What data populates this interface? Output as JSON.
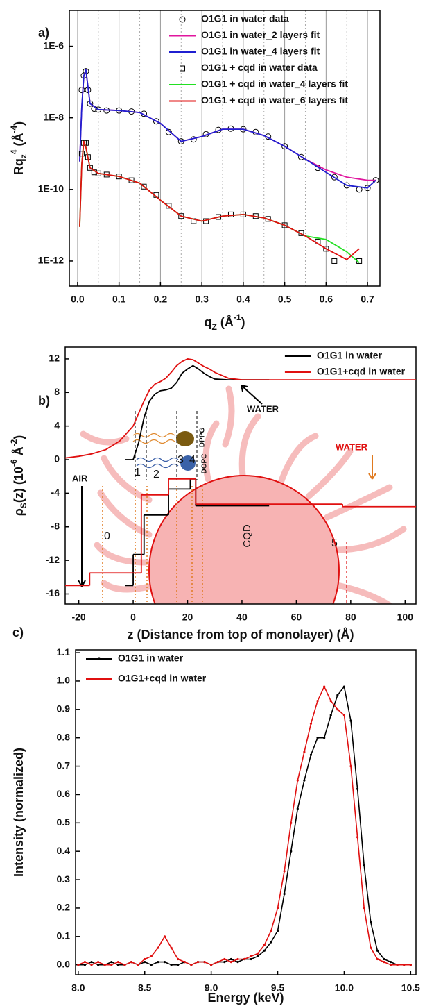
{
  "chart_data": [
    {
      "type": "line",
      "panel_label": "a)",
      "log": true,
      "grid": "x",
      "legend": "upper right",
      "xlim": [
        -0.02,
        0.73
      ],
      "ylim": [
        2e-13,
        1e-05
      ],
      "xticks": [
        {
          "value": 0,
          "label": "0.0"
        },
        0.1,
        0.2,
        0.3,
        0.4,
        0.5,
        0.6,
        0.7
      ],
      "yticks": [
        {
          "value": 1e-12,
          "label": "1E-12"
        },
        {
          "value": 1e-10,
          "label": "1E-10"
        },
        {
          "value": 1e-08,
          "label": "1E-8"
        },
        {
          "value": 1e-06,
          "label": "1E-6"
        }
      ],
      "xlabel": [
        {
          "text": "q"
        },
        {
          "text": "Z",
          "shift": "sub"
        },
        {
          "text": " (Å"
        },
        {
          "text": "-1",
          "shift": "super"
        },
        {
          "text": ")"
        }
      ],
      "ylabel": [
        {
          "text": "Rq"
        },
        {
          "text": "z",
          "shift": "sub"
        },
        {
          "text": "4",
          "shift": "super"
        },
        {
          "text": " (Å"
        },
        {
          "text": "-4",
          "shift": "super"
        },
        {
          "text": ")"
        }
      ],
      "series": [
        {
          "name": "O1G1 in water data",
          "color": "#000000",
          "marker": "circle",
          "line": false,
          "x": [
            0.01,
            0.015,
            0.02,
            0.025,
            0.03,
            0.04,
            0.05,
            0.07,
            0.1,
            0.13,
            0.16,
            0.19,
            0.22,
            0.25,
            0.28,
            0.31,
            0.34,
            0.37,
            0.4,
            0.43,
            0.46,
            0.5,
            0.54,
            0.58,
            0.62,
            0.65,
            0.68,
            0.7,
            0.72
          ],
          "values": [
            6e-08,
            1.5e-07,
            2e-07,
            6e-08,
            2.5e-08,
            1.8e-08,
            1.7e-08,
            1.6e-08,
            1.6e-08,
            1.5e-08,
            1.3e-08,
            8e-09,
            4e-09,
            2.2e-09,
            2.5e-09,
            3.5e-09,
            4.6e-09,
            5e-09,
            4.8e-09,
            4e-09,
            3e-09,
            1.6e-09,
            8e-10,
            4e-10,
            2.2e-10,
            1.3e-10,
            1e-10,
            1.1e-10,
            1.8e-10
          ]
        },
        {
          "name": "O1G1 in water_2 layers fit",
          "color": "#e0169e",
          "marker": "none",
          "line": true,
          "x": [
            0.005,
            0.01,
            0.015,
            0.02,
            0.03,
            0.05,
            0.1,
            0.15,
            0.2,
            0.25,
            0.3,
            0.35,
            0.4,
            0.45,
            0.5,
            0.55,
            0.6,
            0.65,
            0.7,
            0.72
          ],
          "values": [
            6e-10,
            2e-08,
            1.5e-07,
            2.2e-07,
            2.5e-08,
            1.7e-08,
            1.6e-08,
            1.4e-08,
            7e-09,
            2.2e-09,
            3e-09,
            4.8e-09,
            4.8e-09,
            3.2e-09,
            1.6e-09,
            7e-10,
            3.5e-10,
            2.2e-10,
            1.8e-10,
            1.8e-10
          ]
        },
        {
          "name": "O1G1 in water_4 layers fit",
          "color": "#1f1fd0",
          "marker": "none",
          "line": true,
          "x": [
            0.005,
            0.01,
            0.015,
            0.02,
            0.03,
            0.05,
            0.1,
            0.15,
            0.2,
            0.25,
            0.3,
            0.35,
            0.4,
            0.45,
            0.5,
            0.55,
            0.6,
            0.65,
            0.7,
            0.72
          ],
          "values": [
            6e-10,
            2e-08,
            1.5e-07,
            2.2e-07,
            2.5e-08,
            1.7e-08,
            1.6e-08,
            1.4e-08,
            7e-09,
            2.2e-09,
            3e-09,
            4.8e-09,
            4.8e-09,
            3.2e-09,
            1.6e-09,
            7e-10,
            3e-10,
            1.3e-10,
            1.1e-10,
            1.8e-10
          ]
        },
        {
          "name": "O1G1 + cqd in water data",
          "color": "#000000",
          "marker": "square",
          "line": false,
          "x": [
            0.01,
            0.015,
            0.02,
            0.025,
            0.03,
            0.04,
            0.05,
            0.07,
            0.1,
            0.13,
            0.16,
            0.19,
            0.22,
            0.25,
            0.28,
            0.31,
            0.34,
            0.37,
            0.4,
            0.43,
            0.46,
            0.5,
            0.54,
            0.58,
            0.6,
            0.62,
            0.68
          ],
          "values": [
            1e-09,
            2e-09,
            2e-09,
            8e-10,
            4e-10,
            3e-10,
            2.8e-10,
            2.6e-10,
            2.3e-10,
            1.8e-10,
            1.2e-10,
            7e-11,
            3.5e-11,
            1.8e-11,
            1.3e-11,
            1.3e-11,
            1.7e-11,
            2e-11,
            2e-11,
            1.8e-11,
            1.5e-11,
            1e-11,
            6e-12,
            3.5e-12,
            2.2e-12,
            1e-12,
            1e-12
          ]
        },
        {
          "name": "O1G1 + cqd in water_4 layers fit",
          "color": "#22e022",
          "marker": "none",
          "line": true,
          "x": [
            0.005,
            0.01,
            0.015,
            0.02,
            0.03,
            0.05,
            0.1,
            0.15,
            0.2,
            0.25,
            0.3,
            0.35,
            0.4,
            0.45,
            0.5,
            0.55,
            0.6,
            0.65,
            0.68
          ],
          "values": [
            9e-12,
            5e-10,
            2.2e-09,
            1.5e-09,
            4e-10,
            2.8e-10,
            2.3e-10,
            1.5e-10,
            5e-11,
            1.8e-11,
            1.3e-11,
            1.8e-11,
            2e-11,
            1.6e-11,
            1e-11,
            5e-12,
            4e-12,
            1.8e-12,
            9e-13
          ]
        },
        {
          "name": "O1G1 + cqd in water_6 layers fit",
          "color": "#e01010",
          "marker": "none",
          "line": true,
          "x": [
            0.005,
            0.01,
            0.015,
            0.02,
            0.03,
            0.05,
            0.1,
            0.15,
            0.2,
            0.25,
            0.3,
            0.35,
            0.4,
            0.45,
            0.5,
            0.55,
            0.6,
            0.65,
            0.68
          ],
          "values": [
            9e-12,
            5e-10,
            2.2e-09,
            1.5e-09,
            4e-10,
            2.8e-10,
            2.3e-10,
            1.5e-10,
            5e-11,
            1.8e-11,
            1.3e-11,
            1.8e-11,
            2e-11,
            1.6e-11,
            1e-11,
            5e-12,
            2.2e-12,
            1.1e-12,
            2.2e-12
          ]
        }
      ]
    },
    {
      "type": "line",
      "panel_label": "b)",
      "log": false,
      "grid": "none",
      "legend": "upper right",
      "xlim": [
        -25,
        104
      ],
      "ylim": [
        -17.2,
        13.4
      ],
      "xticks": [
        -20,
        0,
        20,
        40,
        60,
        80,
        100
      ],
      "yticks": [
        -16,
        -12,
        -8,
        -4,
        0,
        4,
        8,
        12
      ],
      "xlabel": [
        {
          "text": "z (Distance from top of monolayer) (Å)"
        }
      ],
      "ylabel": [
        {
          "text": "ρ"
        },
        {
          "text": "S",
          "shift": "sub"
        },
        {
          "text": "(z) (10"
        },
        {
          "text": "-6",
          "shift": "super"
        },
        {
          "text": " Å"
        },
        {
          "text": "-2",
          "shift": "super"
        },
        {
          "text": ")"
        }
      ],
      "annotations": [
        "WATER",
        "WATER",
        "AIR",
        "CQD",
        "DPPG",
        "DOPC",
        "0",
        "1",
        "2",
        "3",
        "4",
        "5"
      ],
      "series": [
        {
          "name": "O1G1 in water",
          "color": "#000000",
          "marker": "none",
          "line": true,
          "x": [
            -3,
            0,
            2,
            4,
            6,
            8,
            10,
            12,
            14,
            16,
            18,
            20,
            22,
            24,
            26,
            28,
            30,
            35,
            40,
            50
          ],
          "values": [
            0,
            0,
            2,
            5,
            7,
            7.8,
            8.2,
            8.3,
            8.5,
            9.2,
            10.3,
            10.8,
            11.2,
            10.8,
            10.3,
            9.9,
            9.6,
            9.5,
            9.5,
            9.5
          ]
        },
        {
          "name": "O1G1+cqd in water",
          "color": "#e01010",
          "marker": "none",
          "line": true,
          "x": [
            -25,
            -20,
            -15,
            -10,
            -5,
            0,
            2,
            4,
            6,
            8,
            10,
            12,
            14,
            16,
            18,
            20,
            22,
            24,
            26,
            28,
            30,
            35,
            40,
            60,
            80,
            104
          ],
          "values": [
            0.2,
            0.4,
            0.7,
            1.2,
            2.2,
            4,
            5.5,
            7,
            8.3,
            9,
            9.3,
            9.7,
            10.4,
            11.2,
            11.7,
            12,
            11.9,
            11.5,
            11.1,
            10.8,
            10.4,
            9.7,
            9.5,
            9.5,
            9.5,
            9.5
          ]
        }
      ],
      "step_profiles": [
        {
          "color": "#000000",
          "edges": [
            -3,
            0,
            4,
            13,
            21,
            23,
            50
          ],
          "values": [
            -15,
            -11.3,
            -6.6,
            -3.5,
            -2.3,
            -5.5
          ]
        },
        {
          "color": "#e01010",
          "edges": [
            -25,
            -16,
            3,
            13,
            23,
            77,
            104
          ],
          "values": [
            -15,
            -13.5,
            -4.2,
            -2.3,
            -5.3,
            -5.6
          ]
        }
      ]
    },
    {
      "type": "line",
      "panel_label": "c)",
      "log": false,
      "grid": "none",
      "legend": "upper left",
      "xlim": [
        7.98,
        10.54
      ],
      "ylim": [
        -0.035,
        1.11
      ],
      "xticks": [
        {
          "value": 8,
          "label": "8.0"
        },
        8.5,
        {
          "value": 9,
          "label": "9.0"
        },
        9.5,
        {
          "value": 10,
          "label": "10.0"
        },
        10.5
      ],
      "yticks": [
        {
          "value": 0,
          "label": "0.0"
        },
        0.1,
        0.2,
        0.3,
        0.4,
        0.5,
        0.6,
        0.7,
        0.8,
        0.9,
        {
          "value": 1,
          "label": "1.0"
        },
        1.1
      ],
      "xlabel": [
        {
          "text": "Energy (keV)"
        }
      ],
      "ylabel": [
        {
          "text": "Intensity (normalized)"
        }
      ],
      "series": [
        {
          "name": "O1G1 in water",
          "color": "#000000",
          "marker": "dot",
          "line": true,
          "x": [
            8.0,
            8.05,
            8.1,
            8.15,
            8.2,
            8.25,
            8.3,
            8.35,
            8.4,
            8.45,
            8.5,
            8.55,
            8.6,
            8.65,
            8.7,
            8.75,
            8.8,
            8.85,
            8.9,
            8.95,
            9.0,
            9.05,
            9.1,
            9.15,
            9.2,
            9.25,
            9.3,
            9.35,
            9.4,
            9.45,
            9.5,
            9.55,
            9.6,
            9.65,
            9.7,
            9.75,
            9.8,
            9.85,
            9.9,
            9.95,
            10.0,
            10.05,
            10.1,
            10.15,
            10.2,
            10.25,
            10.3,
            10.35,
            10.4,
            10.45,
            10.5
          ],
          "values": [
            0,
            0,
            0.01,
            0,
            0,
            0.01,
            0,
            0,
            0.01,
            0,
            0.01,
            0,
            0.01,
            0.01,
            0,
            0,
            0.01,
            0,
            0.01,
            0.01,
            0,
            0.01,
            0.01,
            0.02,
            0.01,
            0.02,
            0.02,
            0.03,
            0.05,
            0.08,
            0.12,
            0.25,
            0.4,
            0.55,
            0.65,
            0.74,
            0.8,
            0.8,
            0.88,
            0.95,
            0.98,
            0.86,
            0.62,
            0.35,
            0.15,
            0.05,
            0.02,
            0.01,
            0,
            0,
            0
          ]
        },
        {
          "name": "O1G1+cqd in water",
          "color": "#e01010",
          "marker": "dot",
          "line": true,
          "x": [
            8.0,
            8.05,
            8.1,
            8.15,
            8.2,
            8.25,
            8.3,
            8.35,
            8.4,
            8.45,
            8.5,
            8.55,
            8.6,
            8.65,
            8.7,
            8.75,
            8.8,
            8.85,
            8.9,
            8.95,
            9.0,
            9.05,
            9.1,
            9.15,
            9.2,
            9.25,
            9.3,
            9.35,
            9.4,
            9.45,
            9.5,
            9.55,
            9.6,
            9.65,
            9.7,
            9.75,
            9.8,
            9.85,
            9.9,
            9.95,
            10.0,
            10.05,
            10.1,
            10.15,
            10.2,
            10.25,
            10.3,
            10.35,
            10.4,
            10.45,
            10.5
          ],
          "values": [
            0,
            0.01,
            0,
            0.01,
            0,
            0,
            0.01,
            0,
            0.01,
            0,
            0.02,
            0.03,
            0.06,
            0.1,
            0.06,
            0.02,
            0.01,
            0,
            0.01,
            0.01,
            0,
            0.01,
            0.02,
            0.01,
            0.02,
            0.02,
            0.03,
            0.04,
            0.07,
            0.12,
            0.2,
            0.33,
            0.5,
            0.65,
            0.75,
            0.85,
            0.93,
            0.98,
            0.93,
            0.9,
            0.88,
            0.7,
            0.45,
            0.2,
            0.06,
            0.02,
            0.01,
            0,
            0,
            0,
            0
          ]
        }
      ]
    }
  ]
}
